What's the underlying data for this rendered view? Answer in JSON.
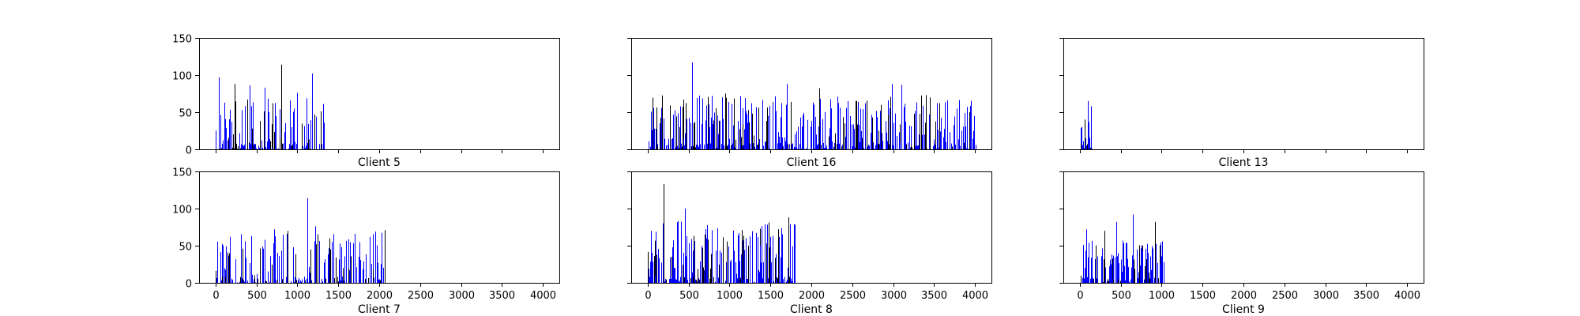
{
  "chart_data": [
    {
      "type": "bar",
      "title": "",
      "xlabel": "Client 5",
      "ylabel": "",
      "xlim": [
        -200,
        4200
      ],
      "ylim": [
        0,
        150
      ],
      "xticks": [
        0,
        500,
        1000,
        1500,
        2000,
        2500,
        3000,
        3500,
        4000
      ],
      "yticks": [
        0,
        50,
        100,
        150
      ],
      "show_xtick_labels": false,
      "show_ytick_labels": true,
      "colors": [
        "#0000ff",
        "#000000"
      ],
      "extent": [
        0,
        1340
      ],
      "max_value": 114,
      "density": 0.42,
      "seed": 5,
      "peaks": [
        [
          40,
          97
        ],
        [
          230,
          88
        ],
        [
          420,
          86
        ],
        [
          600,
          83
        ],
        [
          800,
          114
        ],
        [
          1000,
          76
        ],
        [
          1180,
          102
        ],
        [
          1210,
          47
        ],
        [
          1320,
          36
        ]
      ]
    },
    {
      "type": "bar",
      "title": "",
      "xlabel": "Client 16",
      "ylabel": "",
      "xlim": [
        -200,
        4200
      ],
      "ylim": [
        0,
        150
      ],
      "xticks": [
        0,
        500,
        1000,
        1500,
        2000,
        2500,
        3000,
        3500,
        4000
      ],
      "yticks": [
        0,
        50,
        100,
        150
      ],
      "show_xtick_labels": false,
      "show_ytick_labels": false,
      "colors": [
        "#0000ff",
        "#000000"
      ],
      "extent": [
        0,
        4010
      ],
      "max_value": 117,
      "density": 0.45,
      "seed": 16,
      "peaks": [
        [
          150,
          35
        ],
        [
          430,
          57
        ],
        [
          540,
          117
        ],
        [
          780,
          72
        ],
        [
          950,
          75
        ],
        [
          1270,
          62
        ],
        [
          1700,
          88
        ],
        [
          2100,
          82
        ],
        [
          2980,
          88
        ],
        [
          3100,
          87
        ],
        [
          3400,
          73
        ],
        [
          3900,
          57
        ],
        [
          3990,
          45
        ]
      ]
    },
    {
      "type": "bar",
      "title": "",
      "xlabel": "Client 13",
      "ylabel": "",
      "xlim": [
        -200,
        4200
      ],
      "ylim": [
        0,
        150
      ],
      "xticks": [
        0,
        500,
        1000,
        1500,
        2000,
        2500,
        3000,
        3500,
        4000
      ],
      "yticks": [
        0,
        50,
        100,
        150
      ],
      "show_xtick_labels": false,
      "show_ytick_labels": false,
      "colors": [
        "#0000ff",
        "#000000"
      ],
      "extent": [
        0,
        150
      ],
      "max_value": 65,
      "density": 0.55,
      "seed": 13,
      "peaks": [
        [
          20,
          30
        ],
        [
          60,
          40
        ],
        [
          100,
          65
        ],
        [
          140,
          58
        ]
      ]
    },
    {
      "type": "bar",
      "title": "",
      "xlabel": "Client 7",
      "ylabel": "",
      "xlim": [
        -200,
        4200
      ],
      "ylim": [
        0,
        150
      ],
      "xticks": [
        0,
        500,
        1000,
        1500,
        2000,
        2500,
        3000,
        3500,
        4000
      ],
      "yticks": [
        0,
        50,
        100,
        150
      ],
      "show_xtick_labels": true,
      "show_ytick_labels": true,
      "colors": [
        "#0000ff",
        "#000000"
      ],
      "extent": [
        0,
        2080
      ],
      "max_value": 114,
      "density": 0.3,
      "seed": 7,
      "peaks": [
        [
          110,
          20
        ],
        [
          330,
          46
        ],
        [
          600,
          58
        ],
        [
          720,
          72
        ],
        [
          880,
          70
        ],
        [
          1120,
          114
        ],
        [
          1220,
          76
        ],
        [
          1400,
          45
        ],
        [
          1700,
          66
        ],
        [
          1880,
          62
        ],
        [
          2070,
          71
        ]
      ]
    },
    {
      "type": "bar",
      "title": "",
      "xlabel": "Client 8",
      "ylabel": "",
      "xlim": [
        -200,
        4200
      ],
      "ylim": [
        0,
        150
      ],
      "xticks": [
        0,
        500,
        1000,
        1500,
        2000,
        2500,
        3000,
        3500,
        4000
      ],
      "yticks": [
        0,
        50,
        100,
        150
      ],
      "show_xtick_labels": true,
      "show_ytick_labels": false,
      "colors": [
        "#0000ff",
        "#000000"
      ],
      "extent": [
        0,
        1800
      ],
      "max_value": 133,
      "density": 0.42,
      "seed": 8,
      "peaks": [
        [
          40,
          70
        ],
        [
          200,
          133
        ],
        [
          370,
          83
        ],
        [
          460,
          100
        ],
        [
          700,
          65
        ],
        [
          1200,
          60
        ],
        [
          1500,
          62
        ],
        [
          1720,
          88
        ]
      ]
    },
    {
      "type": "bar",
      "title": "",
      "xlabel": "Client 9",
      "ylabel": "",
      "xlim": [
        -200,
        4200
      ],
      "ylim": [
        0,
        150
      ],
      "xticks": [
        0,
        500,
        1000,
        1500,
        2000,
        2500,
        3000,
        3500,
        4000
      ],
      "yticks": [
        0,
        50,
        100,
        150
      ],
      "show_xtick_labels": true,
      "show_ytick_labels": false,
      "colors": [
        "#0000ff",
        "#000000"
      ],
      "extent": [
        0,
        1040
      ],
      "max_value": 92,
      "density": 0.55,
      "seed": 9,
      "peaks": [
        [
          80,
          72
        ],
        [
          300,
          70
        ],
        [
          450,
          82
        ],
        [
          650,
          92
        ],
        [
          920,
          82
        ],
        [
          1030,
          28
        ]
      ]
    }
  ]
}
